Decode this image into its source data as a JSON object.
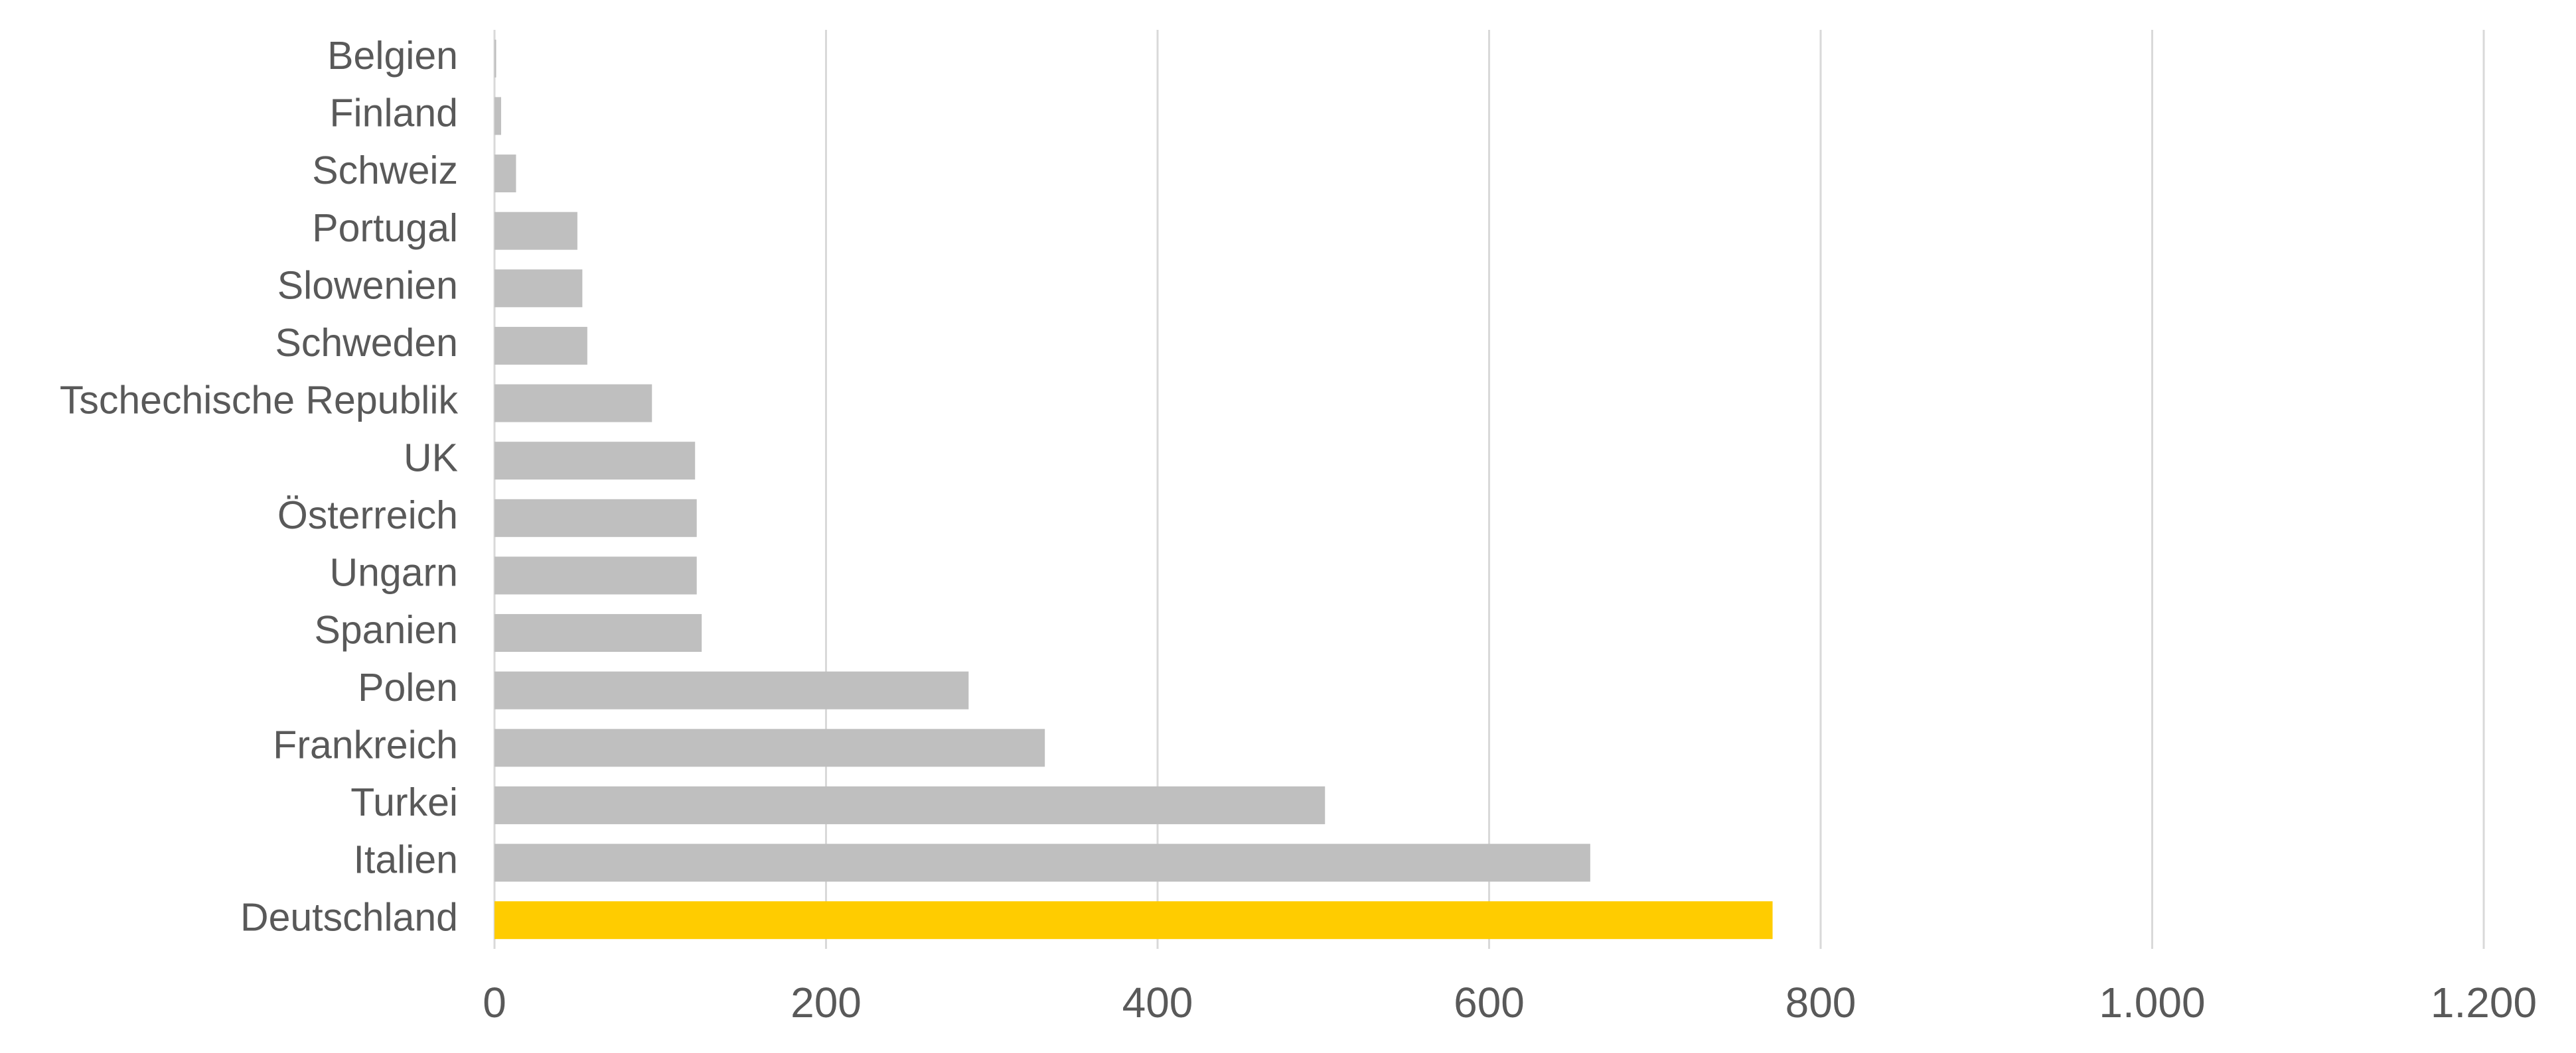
{
  "chart_data": {
    "type": "bar",
    "orientation": "horizontal",
    "categories": [
      "Belgien",
      "Finland",
      "Schweiz",
      "Portugal",
      "Slowenien",
      "Schweden",
      "Tschechische Republik",
      "UK",
      "Österreich",
      "Ungarn",
      "Spanien",
      "Polen",
      "Frankreich",
      "Turkei",
      "Italien",
      "Deutschland"
    ],
    "values": [
      1,
      4,
      13,
      50,
      53,
      56,
      95,
      121,
      122,
      122,
      125,
      286,
      332,
      501,
      661,
      771
    ],
    "colors": [
      "#bfbfbf",
      "#bfbfbf",
      "#bfbfbf",
      "#bfbfbf",
      "#bfbfbf",
      "#bfbfbf",
      "#bfbfbf",
      "#bfbfbf",
      "#bfbfbf",
      "#bfbfbf",
      "#bfbfbf",
      "#bfbfbf",
      "#bfbfbf",
      "#bfbfbf",
      "#bfbfbf",
      "#ffcc00"
    ],
    "xlim": [
      0,
      1200
    ],
    "xticks": [
      0,
      200,
      400,
      600,
      800,
      {
        "value": 1000,
        "label": "1.000"
      },
      {
        "value": 1200,
        "label": "1.200"
      }
    ],
    "grid": true
  }
}
